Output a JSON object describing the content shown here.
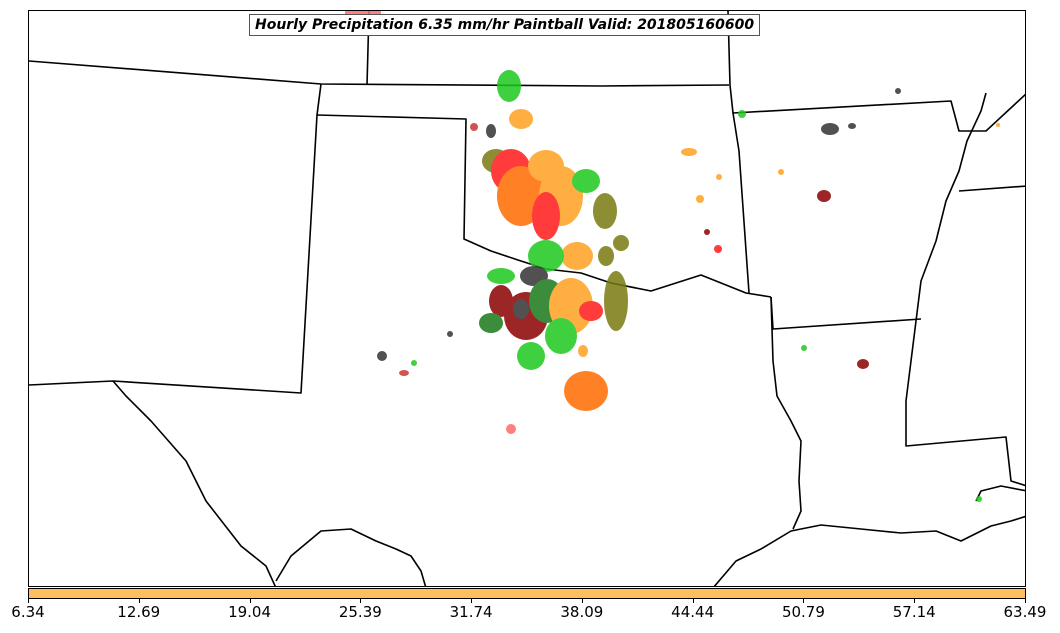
{
  "title": "Hourly Precipitation 6.35 mm/hr Paintball Valid: 201805160600",
  "colorbar": {
    "color": "#fcc05f",
    "ticks": [
      "6.34",
      "12.69",
      "19.04",
      "25.39",
      "31.74",
      "38.09",
      "44.44",
      "50.79",
      "57.14",
      "63.49"
    ]
  },
  "member_colors": [
    "#1ec81e",
    "#ff6a00",
    "#ff1a1a",
    "#ffa020",
    "#7a7a10",
    "#8b0000",
    "#1a7a1a",
    "#333333",
    "#cc3333"
  ],
  "icons": [
    "state-boundaries",
    "coastline",
    "precipitation-blobs"
  ]
}
